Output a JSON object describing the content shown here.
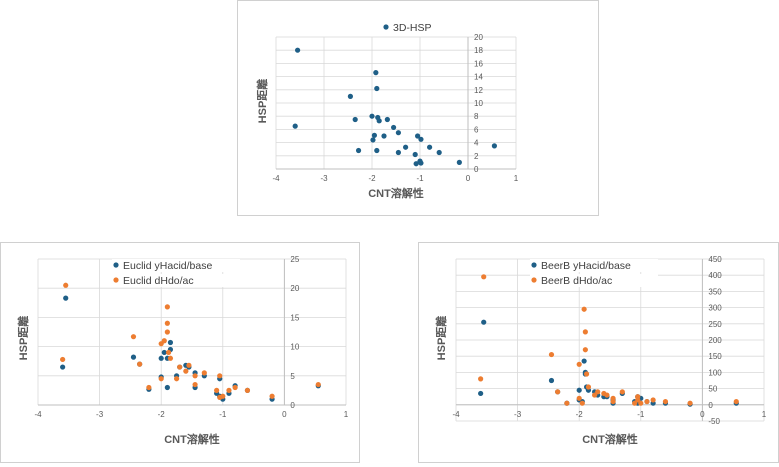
{
  "colors": {
    "blue": "#1f5f87",
    "orange": "#ed7d31",
    "grid": "#d9d9d9",
    "axis": "#bfbfbf",
    "text": "#595959"
  },
  "chart_data": [
    {
      "type": "scatter",
      "xlabel": "CNT溶解性",
      "ylabel": "HSP距離",
      "xlim": [
        -4,
        1
      ],
      "ylim": [
        0,
        20
      ],
      "xticks": [
        "-4",
        "-3",
        "-2",
        "-1",
        "0",
        "1"
      ],
      "yticks": [
        "0",
        "2",
        "4",
        "6",
        "8",
        "10",
        "12",
        "14",
        "16",
        "18",
        "20"
      ],
      "legend_position": "top",
      "series": [
        {
          "name": "3D-HSP",
          "color": "#1f5f87",
          "points": [
            [
              -3.55,
              18
            ],
            [
              -3.6,
              6.5
            ],
            [
              -2.45,
              11
            ],
            [
              -2.35,
              7.5
            ],
            [
              -2.28,
              2.8
            ],
            [
              -2.0,
              8
            ],
            [
              -1.98,
              4.4
            ],
            [
              -1.95,
              5.1
            ],
            [
              -1.92,
              14.6
            ],
            [
              -1.9,
              12.2
            ],
            [
              -1.9,
              2.8
            ],
            [
              -1.88,
              7.8
            ],
            [
              -1.85,
              7.3
            ],
            [
              -1.75,
              5
            ],
            [
              -1.68,
              7.5
            ],
            [
              -1.55,
              6.3
            ],
            [
              -1.45,
              5.5
            ],
            [
              -1.45,
              2.5
            ],
            [
              -1.3,
              3.3
            ],
            [
              -1.1,
              2.2
            ],
            [
              -1.08,
              0.8
            ],
            [
              -1.05,
              5
            ],
            [
              -1.0,
              1.2
            ],
            [
              -0.98,
              0.9
            ],
            [
              -0.98,
              4.5
            ],
            [
              -0.8,
              3.3
            ],
            [
              -0.6,
              2.5
            ],
            [
              -0.18,
              1
            ],
            [
              0.55,
              3.5
            ]
          ]
        }
      ]
    },
    {
      "type": "scatter",
      "xlabel": "CNT溶解性",
      "ylabel": "HSP距離",
      "xlim": [
        -4,
        1
      ],
      "ylim": [
        0,
        25
      ],
      "xticks": [
        "-4",
        "-3",
        "-2",
        "-1",
        "0",
        "1"
      ],
      "yticks": [
        "0",
        "5",
        "10",
        "15",
        "20",
        "25"
      ],
      "legend_position": "top",
      "series": [
        {
          "name": "Euclid yHacid/base",
          "color": "#1f5f87",
          "points": [
            [
              -3.55,
              18.3
            ],
            [
              -3.6,
              6.5
            ],
            [
              -2.45,
              8.2
            ],
            [
              -2.35,
              7
            ],
            [
              -2.2,
              2.7
            ],
            [
              -2.0,
              8
            ],
            [
              -2.0,
              4.8
            ],
            [
              -1.95,
              9
            ],
            [
              -1.9,
              8
            ],
            [
              -1.9,
              3
            ],
            [
              -1.85,
              9.5
            ],
            [
              -1.85,
              10.7
            ],
            [
              -1.75,
              5
            ],
            [
              -1.7,
              6.5
            ],
            [
              -1.6,
              6.8
            ],
            [
              -1.55,
              6.5
            ],
            [
              -1.45,
              5.5
            ],
            [
              -1.45,
              3
            ],
            [
              -1.3,
              5
            ],
            [
              -1.1,
              2
            ],
            [
              -1.05,
              1.5
            ],
            [
              -1.05,
              4.5
            ],
            [
              -1.0,
              1
            ],
            [
              -0.9,
              2
            ],
            [
              -0.8,
              3.3
            ],
            [
              -0.6,
              2.5
            ],
            [
              -0.2,
              1
            ],
            [
              0.55,
              3.3
            ]
          ]
        },
        {
          "name": "Euclid dHdo/ac",
          "color": "#ed7d31",
          "points": [
            [
              -3.55,
              20.5
            ],
            [
              -3.6,
              7.8
            ],
            [
              -2.45,
              11.7
            ],
            [
              -2.35,
              7
            ],
            [
              -2.2,
              3
            ],
            [
              -2.0,
              10.5
            ],
            [
              -2.0,
              4.5
            ],
            [
              -1.95,
              11
            ],
            [
              -1.9,
              16.8
            ],
            [
              -1.9,
              14
            ],
            [
              -1.9,
              12.5
            ],
            [
              -1.88,
              9
            ],
            [
              -1.85,
              8
            ],
            [
              -1.75,
              4.5
            ],
            [
              -1.7,
              6.5
            ],
            [
              -1.6,
              5.8
            ],
            [
              -1.55,
              6.8
            ],
            [
              -1.45,
              5
            ],
            [
              -1.45,
              3.5
            ],
            [
              -1.3,
              5.5
            ],
            [
              -1.1,
              2.5
            ],
            [
              -1.05,
              1.3
            ],
            [
              -1.05,
              5
            ],
            [
              -1.0,
              1.5
            ],
            [
              -0.9,
              2.5
            ],
            [
              -0.8,
              3
            ],
            [
              -0.6,
              2.5
            ],
            [
              -0.2,
              1.5
            ],
            [
              0.55,
              3.5
            ]
          ]
        }
      ]
    },
    {
      "type": "scatter",
      "xlabel": "CNT溶解性",
      "ylabel": "HSP距離",
      "xlim": [
        -4,
        1
      ],
      "ylim": [
        -50,
        450
      ],
      "xticks": [
        "-4",
        "-3",
        "-2",
        "-1",
        "0",
        "1"
      ],
      "yticks": [
        "-50",
        "0",
        "50",
        "100",
        "150",
        "200",
        "250",
        "300",
        "350",
        "400",
        "450"
      ],
      "legend_position": "top",
      "series": [
        {
          "name": "BeerB yHacid/base",
          "color": "#1f5f87",
          "points": [
            [
              -3.55,
              255
            ],
            [
              -3.6,
              35
            ],
            [
              -2.45,
              75
            ],
            [
              -2.35,
              40
            ],
            [
              -2.2,
              5
            ],
            [
              -2.0,
              45
            ],
            [
              -2.0,
              15
            ],
            [
              -1.95,
              10
            ],
            [
              -1.92,
              135
            ],
            [
              -1.9,
              100
            ],
            [
              -1.9,
              95
            ],
            [
              -1.88,
              55
            ],
            [
              -1.85,
              45
            ],
            [
              -1.75,
              40
            ],
            [
              -1.7,
              30
            ],
            [
              -1.6,
              25
            ],
            [
              -1.55,
              25
            ],
            [
              -1.45,
              15
            ],
            [
              -1.45,
              5
            ],
            [
              -1.3,
              35
            ],
            [
              -1.1,
              10
            ],
            [
              -1.05,
              5
            ],
            [
              -1.05,
              25
            ],
            [
              -1.0,
              20
            ],
            [
              -0.9,
              10
            ],
            [
              -0.8,
              5
            ],
            [
              -0.6,
              5
            ],
            [
              -0.2,
              2
            ],
            [
              0.55,
              5
            ]
          ]
        },
        {
          "name": "BeerB dHdo/ac",
          "color": "#ed7d31",
          "points": [
            [
              -3.55,
              395
            ],
            [
              -3.6,
              80
            ],
            [
              -2.45,
              155
            ],
            [
              -2.35,
              40
            ],
            [
              -2.2,
              5
            ],
            [
              -2.0,
              125
            ],
            [
              -2.0,
              20
            ],
            [
              -1.95,
              5
            ],
            [
              -1.92,
              295
            ],
            [
              -1.9,
              225
            ],
            [
              -1.9,
              170
            ],
            [
              -1.88,
              95
            ],
            [
              -1.85,
              55
            ],
            [
              -1.75,
              30
            ],
            [
              -1.7,
              40
            ],
            [
              -1.6,
              35
            ],
            [
              -1.55,
              30
            ],
            [
              -1.45,
              10
            ],
            [
              -1.45,
              20
            ],
            [
              -1.3,
              40
            ],
            [
              -1.1,
              5
            ],
            [
              -1.05,
              15
            ],
            [
              -1.05,
              25
            ],
            [
              -1.0,
              5
            ],
            [
              -0.9,
              10
            ],
            [
              -0.8,
              15
            ],
            [
              -0.6,
              10
            ],
            [
              -0.2,
              5
            ],
            [
              0.55,
              10
            ]
          ]
        }
      ]
    }
  ]
}
